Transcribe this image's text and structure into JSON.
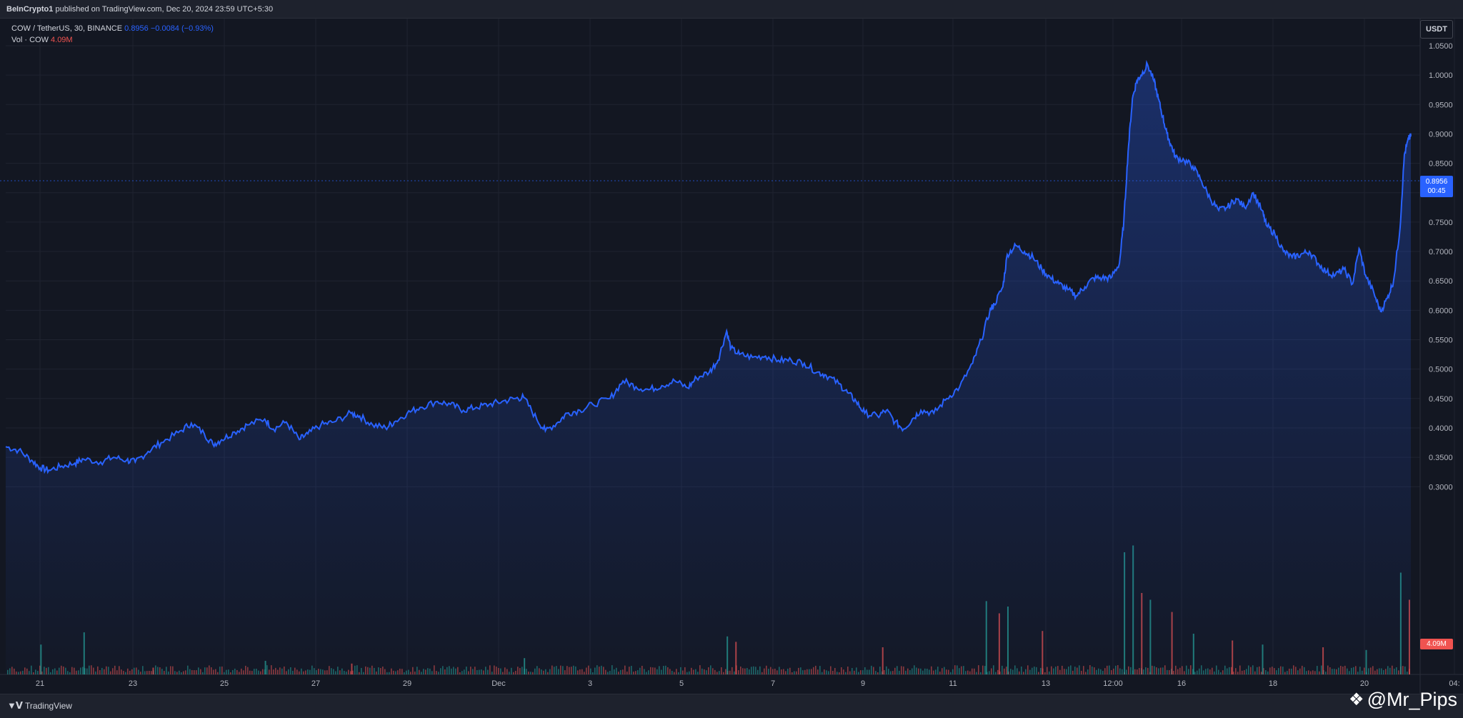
{
  "header": {
    "publisher": "BeInCrypto1",
    "published_text": "published on TradingView.com, Dec 20, 2024 23:59 UTC+5:30"
  },
  "legend": {
    "symbol": "COW / TetherUS, 30, BINANCE",
    "last": "0.8956",
    "change": "−0.0084 (−0.93%)",
    "vol_label": "Vol · COW",
    "vol_value": "4.09M"
  },
  "currency_button": "USDT",
  "price_tag": {
    "price": "0.8956",
    "countdown": "00:45"
  },
  "volume_tag": "4.09M",
  "footer": {
    "brand": "TradingView",
    "watermark": "@Mr_Pips"
  },
  "colors": {
    "line": "#2962ff",
    "up_volume": "#26a69a",
    "down_volume": "#ef5350",
    "background": "#131722"
  },
  "chart_data": {
    "type": "area",
    "title": "",
    "ylabel": "",
    "ylim": [
      0.3,
      1.06
    ],
    "y_ticks": [
      "1.0500",
      "1.0000",
      "0.9500",
      "0.9000",
      "0.8500",
      "0.8000",
      "0.7500",
      "0.7000",
      "0.6500",
      "0.6000",
      "0.5500",
      "0.5000",
      "0.4500",
      "0.4000",
      "0.3500",
      "0.3000"
    ],
    "x_ticks": [
      "21",
      "23",
      "25",
      "27",
      "29",
      "Dec",
      "3",
      "5",
      "7",
      "9",
      "11",
      "13",
      "12:00",
      "16",
      "18",
      "20",
      "04:"
    ],
    "series": [
      {
        "values": [
          [
            20.0,
            0.368
          ],
          [
            20.3,
            0.362
          ],
          [
            20.6,
            0.345
          ],
          [
            20.8,
            0.332
          ],
          [
            21.0,
            0.328
          ],
          [
            21.3,
            0.335
          ],
          [
            21.6,
            0.34
          ],
          [
            21.8,
            0.347
          ],
          [
            22.2,
            0.342
          ],
          [
            22.5,
            0.35
          ],
          [
            22.8,
            0.345
          ],
          [
            23.0,
            0.342
          ],
          [
            23.3,
            0.36
          ],
          [
            23.6,
            0.375
          ],
          [
            24.0,
            0.392
          ],
          [
            24.3,
            0.408
          ],
          [
            24.6,
            0.39
          ],
          [
            24.8,
            0.372
          ],
          [
            25.0,
            0.38
          ],
          [
            25.3,
            0.393
          ],
          [
            25.6,
            0.405
          ],
          [
            26.0,
            0.415
          ],
          [
            26.2,
            0.398
          ],
          [
            26.5,
            0.41
          ],
          [
            26.8,
            0.38
          ],
          [
            27.0,
            0.39
          ],
          [
            27.3,
            0.405
          ],
          [
            27.6,
            0.41
          ],
          [
            28.0,
            0.425
          ],
          [
            28.2,
            0.42
          ],
          [
            28.5,
            0.405
          ],
          [
            28.8,
            0.4
          ],
          [
            29.0,
            0.41
          ],
          [
            29.3,
            0.425
          ],
          [
            29.6,
            0.435
          ],
          [
            30.0,
            0.445
          ],
          [
            30.3,
            0.44
          ],
          [
            30.6,
            0.43
          ],
          [
            30.9,
            0.435
          ],
          [
            31.2,
            0.44
          ],
          [
            31.5,
            0.445
          ],
          [
            31.8,
            0.45
          ],
          [
            32.0,
            0.452
          ],
          [
            32.3,
            0.415
          ],
          [
            32.5,
            0.395
          ],
          [
            32.8,
            0.41
          ],
          [
            33.0,
            0.425
          ],
          [
            33.3,
            0.43
          ],
          [
            33.6,
            0.44
          ],
          [
            34.0,
            0.45
          ],
          [
            34.3,
            0.48
          ],
          [
            34.6,
            0.47
          ],
          [
            34.9,
            0.465
          ],
          [
            35.2,
            0.472
          ],
          [
            35.5,
            0.48
          ],
          [
            35.8,
            0.468
          ],
          [
            36.0,
            0.485
          ],
          [
            36.3,
            0.495
          ],
          [
            36.5,
            0.515
          ],
          [
            36.7,
            0.565
          ],
          [
            36.8,
            0.535
          ],
          [
            37.0,
            0.525
          ],
          [
            37.3,
            0.52
          ],
          [
            37.6,
            0.522
          ],
          [
            37.9,
            0.515
          ],
          [
            38.2,
            0.515
          ],
          [
            38.5,
            0.51
          ],
          [
            38.8,
            0.495
          ],
          [
            39.0,
            0.49
          ],
          [
            39.3,
            0.475
          ],
          [
            39.5,
            0.46
          ],
          [
            39.7,
            0.445
          ],
          [
            39.9,
            0.425
          ],
          [
            40.2,
            0.42
          ],
          [
            40.4,
            0.43
          ],
          [
            40.6,
            0.41
          ],
          [
            40.8,
            0.398
          ],
          [
            41.0,
            0.415
          ],
          [
            41.2,
            0.43
          ],
          [
            41.5,
            0.425
          ],
          [
            41.8,
            0.45
          ],
          [
            42.1,
            0.47
          ],
          [
            42.4,
            0.51
          ],
          [
            42.6,
            0.55
          ],
          [
            42.8,
            0.6
          ],
          [
            42.9,
            0.61
          ],
          [
            43.1,
            0.64
          ],
          [
            43.2,
            0.695
          ],
          [
            43.4,
            0.71
          ],
          [
            43.6,
            0.7
          ],
          [
            43.8,
            0.69
          ],
          [
            44.0,
            0.67
          ],
          [
            44.2,
            0.655
          ],
          [
            44.4,
            0.645
          ],
          [
            44.6,
            0.635
          ],
          [
            44.8,
            0.625
          ],
          [
            45.0,
            0.64
          ],
          [
            45.2,
            0.655
          ],
          [
            45.4,
            0.655
          ],
          [
            45.6,
            0.655
          ],
          [
            45.8,
            0.68
          ],
          [
            45.9,
            0.75
          ],
          [
            46.0,
            0.87
          ],
          [
            46.1,
            0.96
          ],
          [
            46.2,
            0.99
          ],
          [
            46.3,
            1.0
          ],
          [
            46.45,
            1.018
          ],
          [
            46.6,
            0.99
          ],
          [
            46.7,
            0.96
          ],
          [
            46.8,
            0.93
          ],
          [
            46.9,
            0.9
          ],
          [
            47.0,
            0.88
          ],
          [
            47.1,
            0.86
          ],
          [
            47.3,
            0.855
          ],
          [
            47.5,
            0.845
          ],
          [
            47.7,
            0.82
          ],
          [
            47.9,
            0.79
          ],
          [
            48.1,
            0.77
          ],
          [
            48.3,
            0.775
          ],
          [
            48.5,
            0.79
          ],
          [
            48.7,
            0.775
          ],
          [
            48.9,
            0.8
          ],
          [
            49.1,
            0.77
          ],
          [
            49.2,
            0.745
          ],
          [
            49.4,
            0.73
          ],
          [
            49.6,
            0.7
          ],
          [
            49.8,
            0.69
          ],
          [
            50.0,
            0.695
          ],
          [
            50.2,
            0.7
          ],
          [
            50.4,
            0.68
          ],
          [
            50.6,
            0.665
          ],
          [
            50.8,
            0.66
          ],
          [
            51.0,
            0.67
          ],
          [
            51.2,
            0.645
          ],
          [
            51.35,
            0.705
          ],
          [
            51.5,
            0.66
          ],
          [
            51.7,
            0.628
          ],
          [
            51.85,
            0.598
          ],
          [
            52.0,
            0.62
          ],
          [
            52.15,
            0.65
          ],
          [
            52.3,
            0.74
          ],
          [
            52.4,
            0.865
          ],
          [
            52.5,
            0.892
          ],
          [
            52.55,
            0.896
          ]
        ]
      }
    ],
    "volume": {
      "max_label": "4.09M",
      "bars": [
        [
          20.8,
          0.22,
          "up"
        ],
        [
          21.8,
          0.31,
          "up"
        ],
        [
          23.4,
          0.05,
          "down"
        ],
        [
          26.0,
          0.1,
          "up"
        ],
        [
          28.0,
          0.08,
          "down"
        ],
        [
          32.0,
          0.12,
          "up"
        ],
        [
          36.7,
          0.28,
          "up"
        ],
        [
          36.9,
          0.24,
          "down"
        ],
        [
          40.3,
          0.2,
          "down"
        ],
        [
          42.7,
          0.54,
          "up"
        ],
        [
          43.0,
          0.45,
          "down"
        ],
        [
          43.2,
          0.5,
          "up"
        ],
        [
          44.0,
          0.32,
          "down"
        ],
        [
          45.9,
          0.9,
          "up"
        ],
        [
          46.1,
          0.95,
          "up"
        ],
        [
          46.3,
          0.6,
          "down"
        ],
        [
          46.5,
          0.55,
          "up"
        ],
        [
          47.0,
          0.46,
          "down"
        ],
        [
          47.5,
          0.3,
          "up"
        ],
        [
          48.4,
          0.25,
          "down"
        ],
        [
          49.1,
          0.22,
          "up"
        ],
        [
          50.5,
          0.2,
          "down"
        ],
        [
          51.5,
          0.18,
          "up"
        ],
        [
          52.3,
          0.75,
          "up"
        ],
        [
          52.5,
          0.55,
          "down"
        ]
      ]
    }
  }
}
